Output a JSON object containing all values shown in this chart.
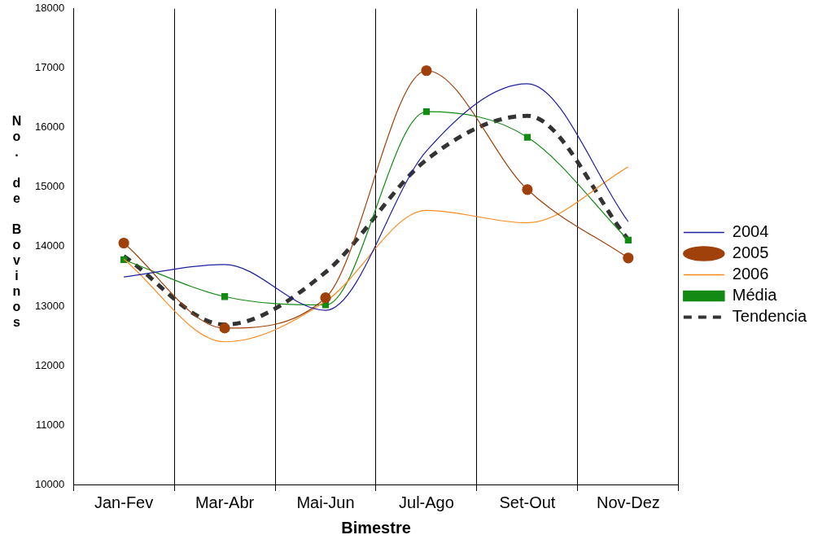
{
  "chart_data": {
    "type": "line",
    "xlabel": "Bimestre",
    "ylabel": "No. de Bovinos",
    "categories": [
      "Jan-Fev",
      "Mar-Abr",
      "Mai-Jun",
      "Jul-Ago",
      "Set-Out",
      "Nov-Dez"
    ],
    "series": [
      {
        "name": "2004",
        "color": "#1f1f9f",
        "marker": "none",
        "values": [
          13490,
          13700,
          12930,
          15610,
          16740,
          14420
        ]
      },
      {
        "name": "2005",
        "color": "#a0400a",
        "marker": "circle",
        "values": [
          14060,
          12630,
          13140,
          16960,
          14960,
          13810
        ]
      },
      {
        "name": "2006",
        "color": "#ff8a1e",
        "marker": "none",
        "values": [
          13790,
          12400,
          13080,
          14610,
          14400,
          15340
        ]
      },
      {
        "name": "Média",
        "color": "#138a13",
        "marker": "square",
        "values": [
          13780,
          13160,
          13020,
          16270,
          15840,
          14110
        ]
      },
      {
        "name": "Tendencia",
        "color": "#333333",
        "marker": "none",
        "line_style": "dashed",
        "values": [
          13840,
          12690,
          13570,
          15460,
          16200,
          14120
        ]
      }
    ],
    "ylim": [
      10000,
      18000
    ],
    "yticks": [
      10000,
      11000,
      12000,
      13000,
      14000,
      15000,
      16000,
      17000,
      18000
    ],
    "grid": "x",
    "legend": "right"
  }
}
